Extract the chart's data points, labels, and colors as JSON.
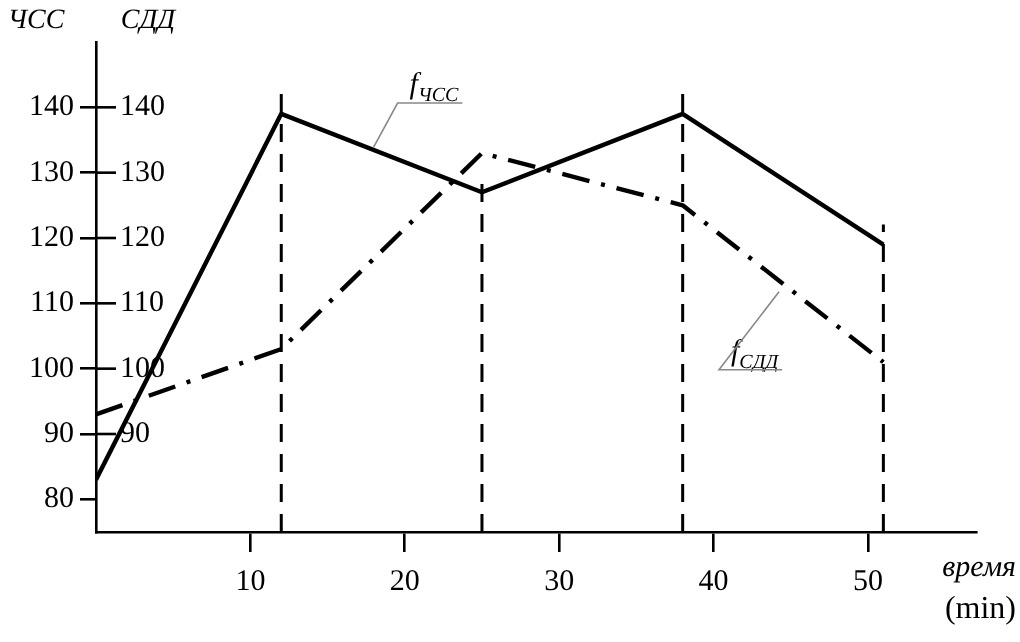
{
  "chart_data": {
    "type": "line",
    "ylabel": "ЧСС",
    "y2label": "СДД",
    "xlabel": "время (min)",
    "x": [
      0,
      12,
      25,
      38,
      51
    ],
    "xlim": [
      0,
      57
    ],
    "xticks": [
      10,
      20,
      30,
      40,
      50
    ],
    "ylim": [
      75,
      150
    ],
    "yticks": [
      80,
      90,
      100,
      110,
      120,
      130,
      140
    ],
    "y2lim": [
      75,
      150
    ],
    "y2ticks": [
      90,
      100,
      110,
      120,
      130,
      140
    ],
    "series": [
      {
        "name": "f$_{ЧСС}$",
        "color": "#000000",
        "values": [
          83,
          139,
          127,
          139,
          119
        ],
        "line_style": "solid"
      },
      {
        "name": "f$_{СДД}$",
        "color": "#000000",
        "values": [
          93,
          103,
          133,
          125,
          101
        ],
        "axis": "y2",
        "line_style": "dashdot"
      }
    ],
    "ref_lines": [
      {
        "axis": "x",
        "value": 12,
        "line_style": "dashed"
      },
      {
        "axis": "x",
        "value": 25,
        "line_style": "dashed"
      },
      {
        "axis": "x",
        "value": 38,
        "line_style": "dashed"
      },
      {
        "axis": "x",
        "value": 51,
        "line_style": "dashed"
      }
    ],
    "grid": false,
    "legend": false,
    "marker": "none"
  }
}
